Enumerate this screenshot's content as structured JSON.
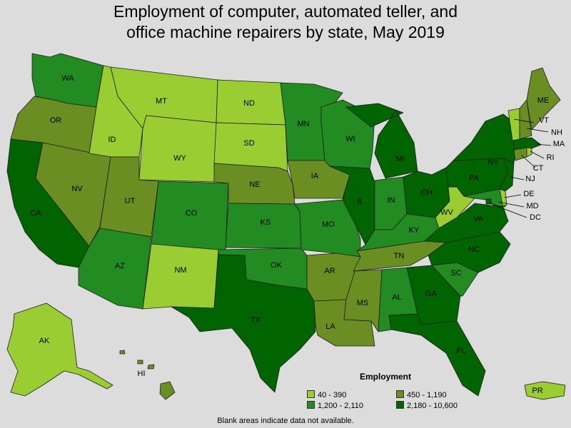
{
  "title": {
    "line1": "Employment of computer, automated teller, and",
    "line2": "office machine repairers by state, May 2019"
  },
  "legend": {
    "title": "Employment",
    "items": [
      {
        "label": "40 - 390",
        "color": "#9acd32"
      },
      {
        "label": "450 - 1,190",
        "color": "#6b8e23"
      },
      {
        "label": "1,200 - 2,110",
        "color": "#228b22"
      },
      {
        "label": "2,180 - 10,600",
        "color": "#006400"
      }
    ]
  },
  "note": "Blank areas indicate data not available.",
  "states": {
    "WA": {
      "label": "WA",
      "bin": 2
    },
    "OR": {
      "label": "OR",
      "bin": 1
    },
    "CA": {
      "label": "CA",
      "bin": 3
    },
    "NV": {
      "label": "NV",
      "bin": 1
    },
    "ID": {
      "label": "ID",
      "bin": 0
    },
    "MT": {
      "label": "MT",
      "bin": 0
    },
    "WY": {
      "label": "WY",
      "bin": 0
    },
    "UT": {
      "label": "UT",
      "bin": 1
    },
    "AZ": {
      "label": "AZ",
      "bin": 2
    },
    "CO": {
      "label": "CO",
      "bin": 2
    },
    "NM": {
      "label": "NM",
      "bin": 0
    },
    "ND": {
      "label": "ND",
      "bin": 0
    },
    "SD": {
      "label": "SD",
      "bin": 0
    },
    "NE": {
      "label": "NE",
      "bin": 1
    },
    "KS": {
      "label": "KS",
      "bin": 2
    },
    "OK": {
      "label": "OK",
      "bin": 2
    },
    "TX": {
      "label": "TX",
      "bin": 3
    },
    "MN": {
      "label": "MN",
      "bin": 2
    },
    "IA": {
      "label": "IA",
      "bin": 1
    },
    "MO": {
      "label": "MO",
      "bin": 2
    },
    "AR": {
      "label": "AR",
      "bin": 1
    },
    "LA": {
      "label": "LA",
      "bin": 1
    },
    "WI": {
      "label": "WI",
      "bin": 2
    },
    "IL": {
      "label": "IL",
      "bin": 3
    },
    "MI": {
      "label": "MI",
      "bin": 3
    },
    "IN": {
      "label": "IN",
      "bin": 2
    },
    "OH": {
      "label": "OH",
      "bin": 3
    },
    "KY": {
      "label": "KY",
      "bin": 2
    },
    "TN": {
      "label": "TN",
      "bin": 1
    },
    "MS": {
      "label": "MS",
      "bin": 1
    },
    "AL": {
      "label": "AL",
      "bin": 2
    },
    "GA": {
      "label": "GA",
      "bin": 3
    },
    "FL": {
      "label": "FL",
      "bin": 3
    },
    "SC": {
      "label": "SC",
      "bin": 2
    },
    "NC": {
      "label": "NC",
      "bin": 3
    },
    "VA": {
      "label": "VA",
      "bin": 3
    },
    "WV": {
      "label": "WV",
      "bin": 0
    },
    "PA": {
      "label": "PA",
      "bin": 3
    },
    "NY": {
      "label": "NY",
      "bin": 3
    },
    "NJ": {
      "label": "NJ",
      "bin": 3
    },
    "DE": {
      "label": "DE",
      "bin": 0
    },
    "MD": {
      "label": "MD",
      "bin": 2
    },
    "DC": {
      "label": "DC",
      "bin": 3
    },
    "CT": {
      "label": "CT",
      "bin": 1
    },
    "RI": {
      "label": "RI",
      "bin": 0
    },
    "MA": {
      "label": "MA",
      "bin": 3
    },
    "VT": {
      "label": "VT",
      "bin": 0
    },
    "NH": {
      "label": "NH",
      "bin": 1
    },
    "ME": {
      "label": "ME",
      "bin": 1
    },
    "AK": {
      "label": "AK",
      "bin": 0
    },
    "HI": {
      "label": "HI",
      "bin": 1
    },
    "PR": {
      "label": "PR",
      "bin": 0
    }
  }
}
